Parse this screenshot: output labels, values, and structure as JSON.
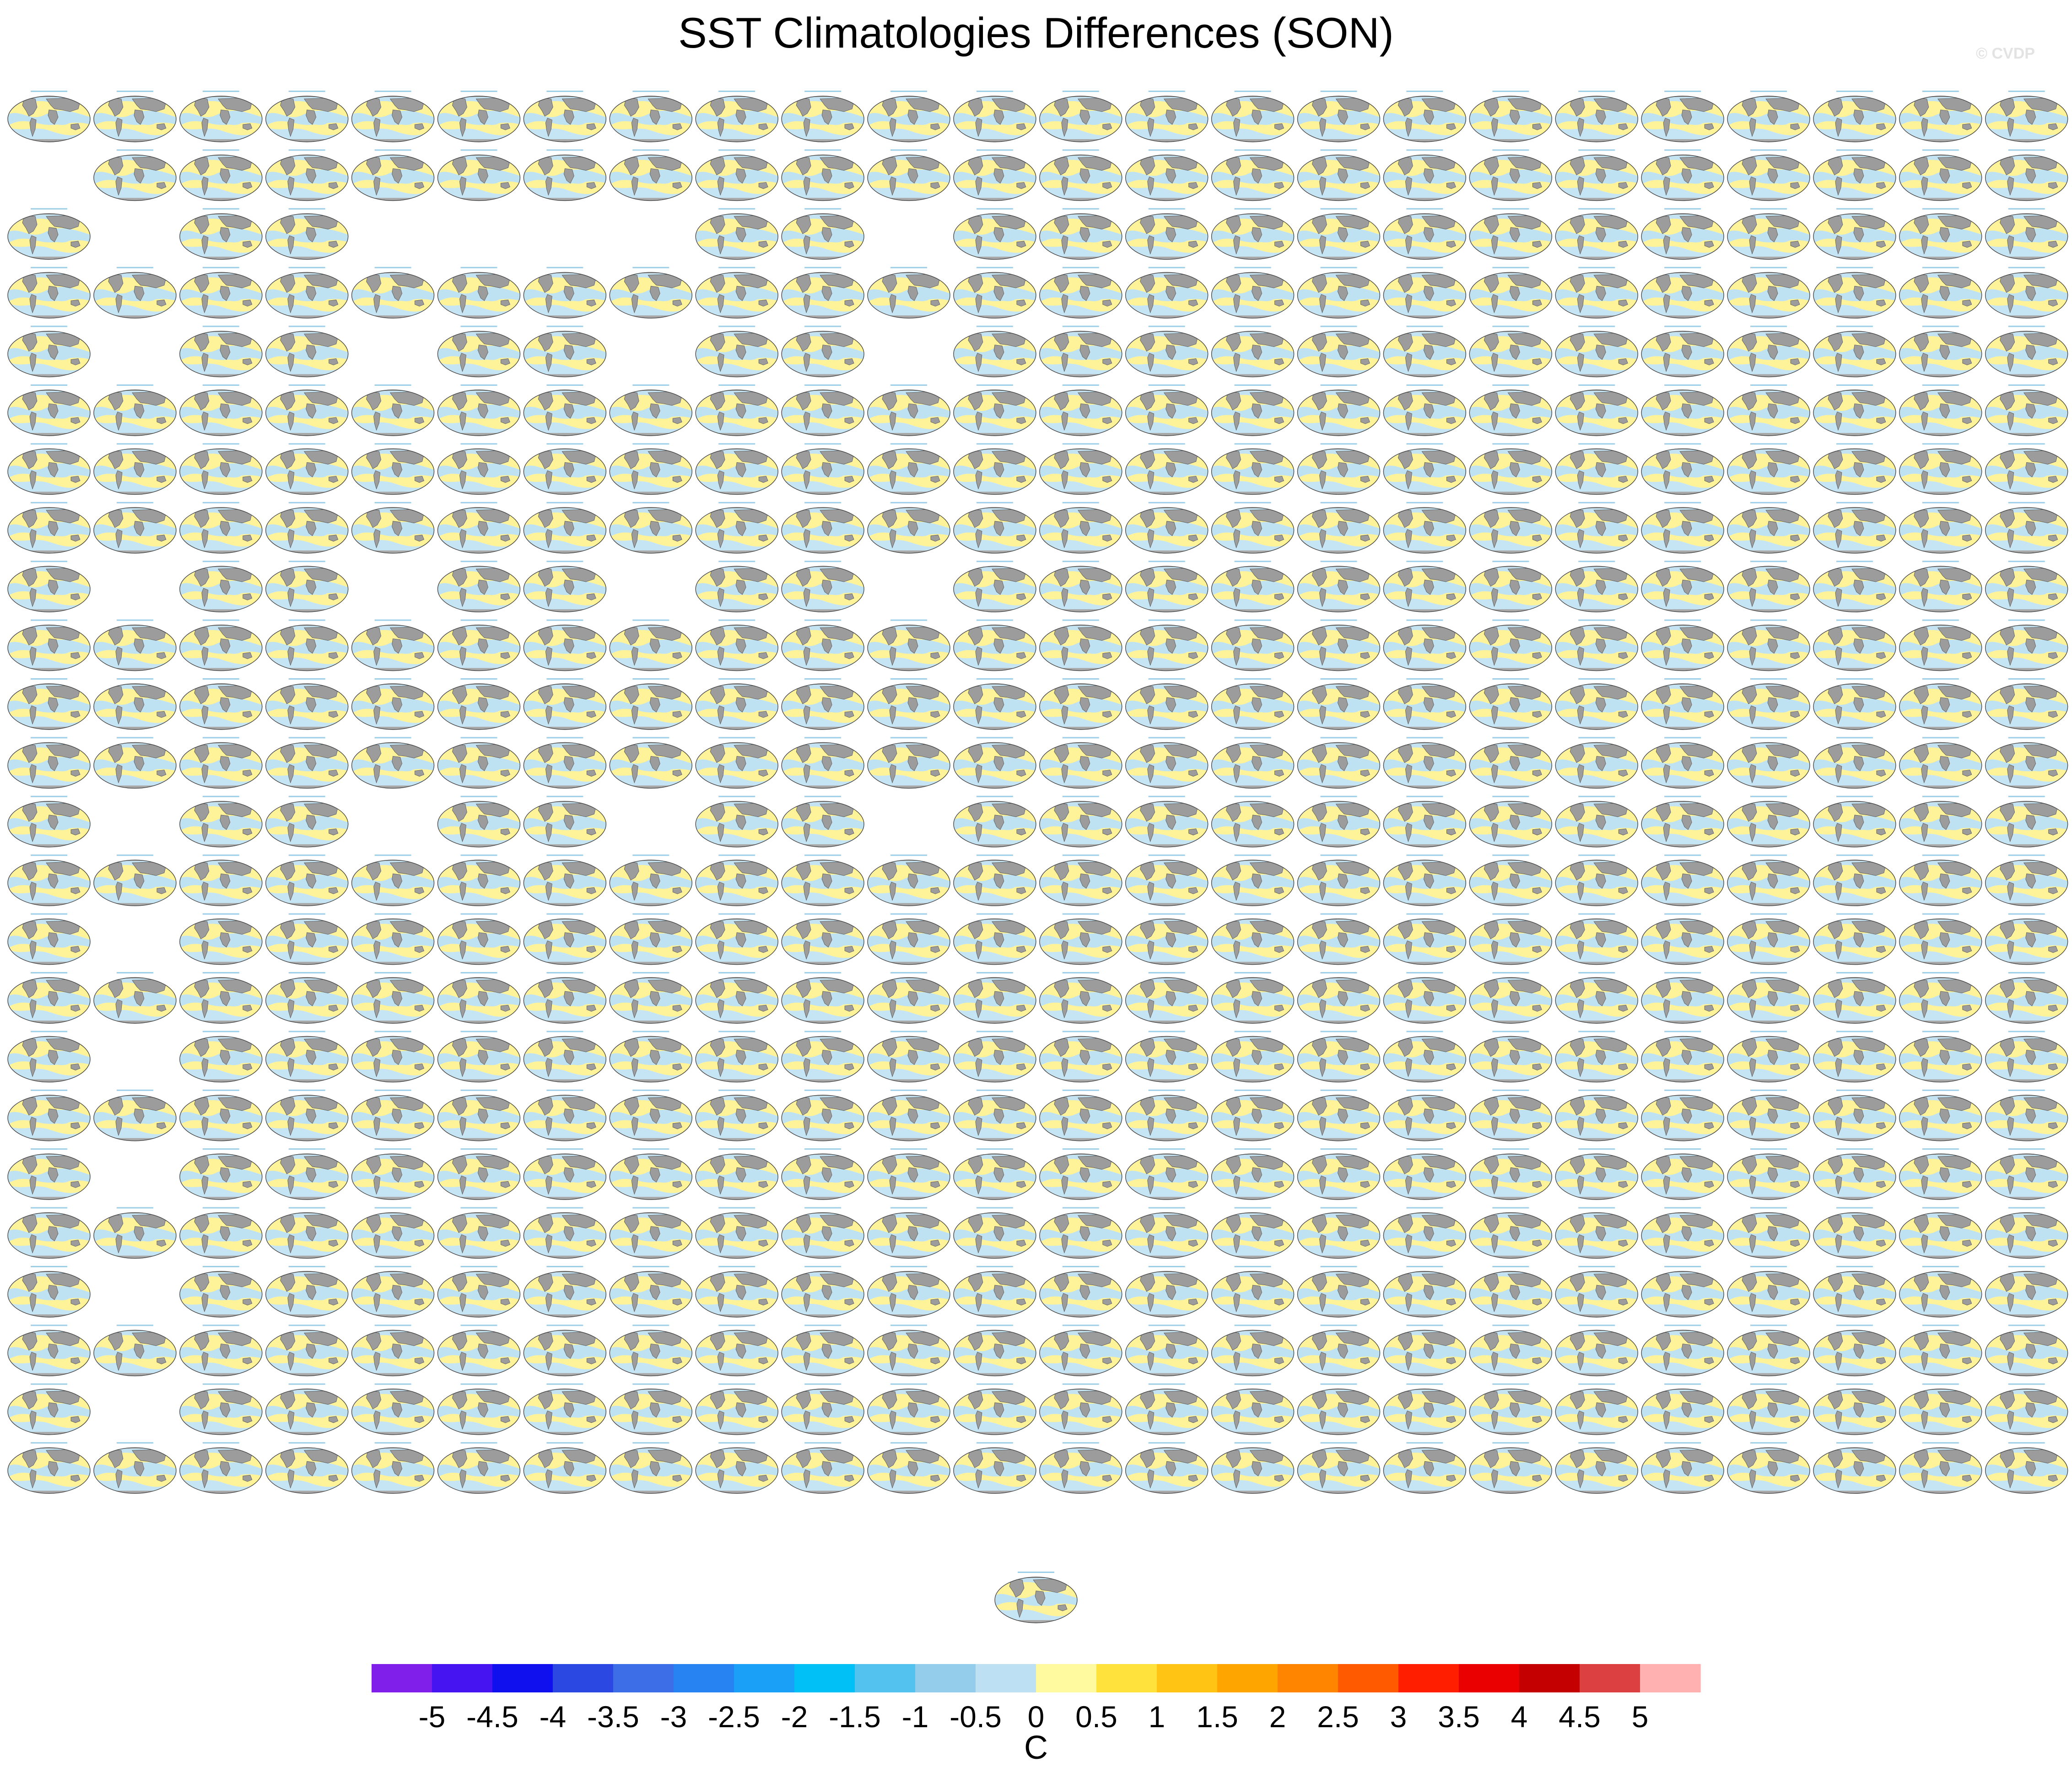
{
  "title": "SST Climatologies Differences (SON)",
  "watermark": "© CVDP",
  "chart_data": {
    "type": "heatmap",
    "title": "SST Climatologies Differences (SON)",
    "units": "C",
    "projection": "global maps (panel grid)",
    "grid": {
      "rows": 24,
      "cols": 24
    },
    "missing_panels": {
      "1": [
        0
      ],
      "2": [
        1,
        4,
        5,
        6,
        7,
        10
      ],
      "4": [
        1,
        4,
        7,
        10
      ],
      "8": [
        1,
        4,
        7,
        10
      ],
      "12": [
        1,
        4,
        7,
        10
      ],
      "14": [
        1
      ],
      "16": [
        1
      ],
      "18": [
        1
      ],
      "20": [
        1
      ],
      "22": [
        1
      ]
    },
    "extra_panel": true,
    "colorbar": {
      "levels": [
        "-5",
        "-4.5",
        "-4",
        "-3.5",
        "-3",
        "-2.5",
        "-2",
        "-1.5",
        "-1",
        "-0.5",
        "0",
        "0.5",
        "1",
        "1.5",
        "2",
        "2.5",
        "3",
        "3.5",
        "4",
        "4.5",
        "5"
      ],
      "colors": [
        "#7f1fe9",
        "#4514f0",
        "#1010ee",
        "#2c48e3",
        "#3d6ee8",
        "#2783f2",
        "#1aa0f7",
        "#00c0f5",
        "#54c2ef",
        "#94cdec",
        "#bde0f2",
        "#fffaa0",
        "#ffe23c",
        "#ffc414",
        "#ffa500",
        "#ff8500",
        "#ff5a00",
        "#ff1e00",
        "#ea0000",
        "#c40000",
        "#dd4040",
        "#ffb0b0"
      ]
    }
  }
}
